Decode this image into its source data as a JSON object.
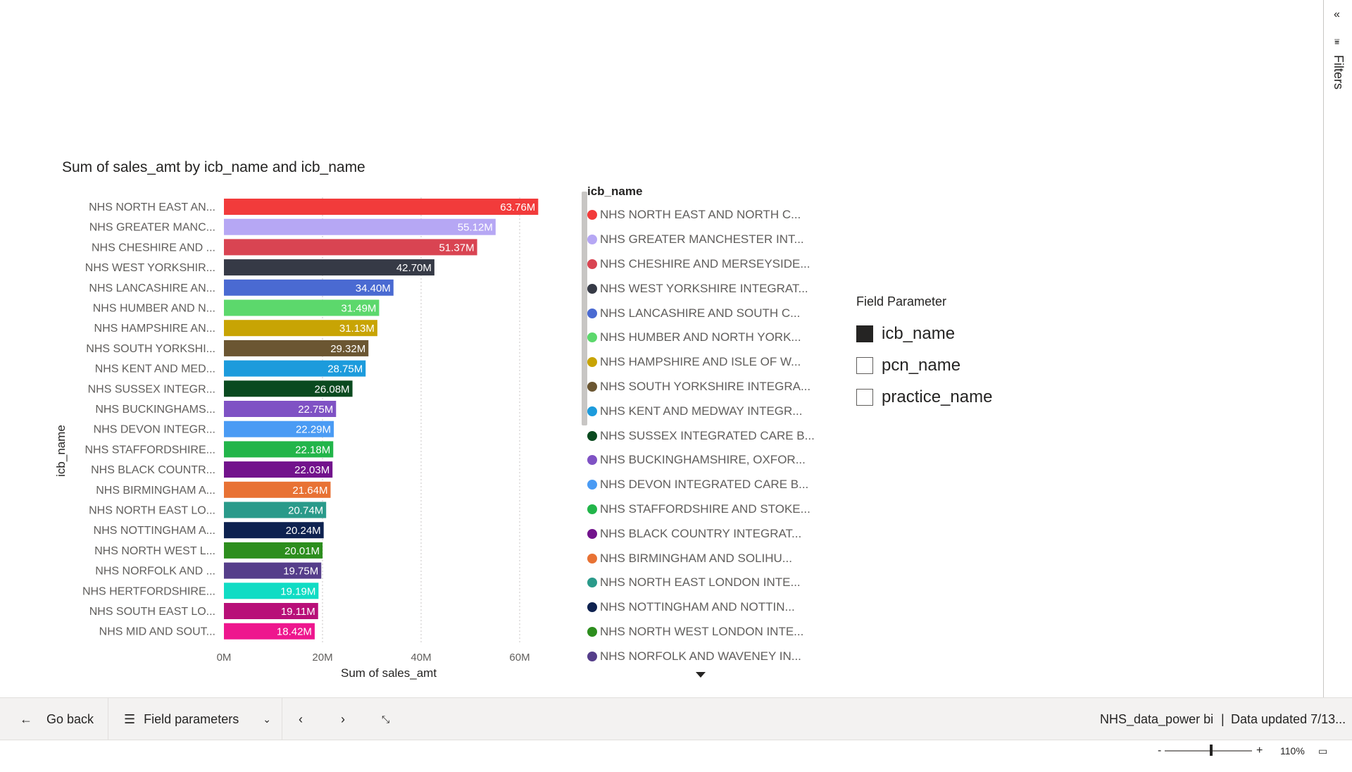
{
  "filters_pane": {
    "collapse_icon": "double-chevron-left-icon",
    "label": "Filters"
  },
  "chart": {
    "title": "Sum of sales_amt by icb_name and icb_name"
  },
  "chart_data": {
    "type": "bar",
    "orientation": "horizontal",
    "title": "Sum of sales_amt by icb_name and icb_name",
    "xlabel": "Sum of sales_amt",
    "ylabel": "icb_name",
    "xlim": [
      0,
      64
    ],
    "xticks": [
      {
        "value": 0,
        "label": "0M"
      },
      {
        "value": 20,
        "label": "20M"
      },
      {
        "value": 40,
        "label": "40M"
      },
      {
        "value": 60,
        "label": "60M"
      }
    ],
    "grid": "vertical-dotted",
    "categories": [
      "NHS NORTH EAST AN...",
      "NHS GREATER MANC...",
      "NHS CHESHIRE AND ...",
      "NHS WEST YORKSHIR...",
      "NHS LANCASHIRE AN...",
      "NHS HUMBER AND N...",
      "NHS HAMPSHIRE AN...",
      "NHS SOUTH YORKSHI...",
      "NHS KENT AND MED...",
      "NHS SUSSEX INTEGR...",
      "NHS BUCKINGHAMS...",
      "NHS DEVON INTEGR...",
      "NHS STAFFORDSHIRE...",
      "NHS BLACK COUNTR...",
      "NHS BIRMINGHAM A...",
      "NHS NORTH EAST LO...",
      "NHS NOTTINGHAM A...",
      "NHS NORTH WEST L...",
      "NHS NORFOLK AND ...",
      "NHS HERTFORDSHIRE...",
      "NHS SOUTH EAST LO...",
      "NHS MID AND SOUT..."
    ],
    "values": [
      63.76,
      55.12,
      51.37,
      42.7,
      34.4,
      31.49,
      31.13,
      29.32,
      28.75,
      26.08,
      22.75,
      22.29,
      22.18,
      22.03,
      21.64,
      20.74,
      20.24,
      20.01,
      19.75,
      19.19,
      19.11,
      18.42
    ],
    "data_labels": [
      "63.76M",
      "55.12M",
      "51.37M",
      "42.70M",
      "34.40M",
      "31.49M",
      "31.13M",
      "29.32M",
      "28.75M",
      "26.08M",
      "22.75M",
      "22.29M",
      "22.18M",
      "22.03M",
      "21.64M",
      "20.74M",
      "20.24M",
      "20.01M",
      "19.75M",
      "19.19M",
      "19.11M",
      "18.42M"
    ],
    "colors": [
      "#F23B3B",
      "#B6A7F4",
      "#D94452",
      "#363A46",
      "#4A6AD2",
      "#5CD86C",
      "#C8A404",
      "#6B5632",
      "#1C9BDC",
      "#0A4A1F",
      "#7F52C4",
      "#4A9BF4",
      "#22B54A",
      "#72138C",
      "#E87234",
      "#2A9A8A",
      "#0E2250",
      "#2D8E1E",
      "#553E8A",
      "#10DCC4",
      "#B80F78",
      "#EE168E"
    ],
    "label_colors": [
      "#ffffff",
      "#ffffff",
      "#ffffff",
      "#ffffff",
      "#ffffff",
      "#ffffff",
      "#ffffff",
      "#ffffff",
      "#ffffff",
      "#ffffff",
      "#ffffff",
      "#ffffff",
      "#ffffff",
      "#ffffff",
      "#ffffff",
      "#ffffff",
      "#ffffff",
      "#ffffff",
      "#ffffff",
      "#ffffff",
      "#ffffff",
      "#ffffff"
    ]
  },
  "legend": {
    "title": "icb_name",
    "items": [
      {
        "label": "NHS NORTH EAST AND NORTH C...",
        "color": "#F23B3B"
      },
      {
        "label": "NHS GREATER MANCHESTER INT...",
        "color": "#B6A7F4"
      },
      {
        "label": "NHS CHESHIRE AND MERSEYSIDE...",
        "color": "#D94452"
      },
      {
        "label": "NHS WEST YORKSHIRE INTEGRAT...",
        "color": "#363A46"
      },
      {
        "label": "NHS LANCASHIRE AND SOUTH C...",
        "color": "#4A6AD2"
      },
      {
        "label": "NHS HUMBER AND NORTH YORK...",
        "color": "#5CD86C"
      },
      {
        "label": "NHS HAMPSHIRE AND ISLE OF W...",
        "color": "#C8A404"
      },
      {
        "label": "NHS SOUTH YORKSHIRE INTEGRA...",
        "color": "#6B5632"
      },
      {
        "label": "NHS KENT AND MEDWAY INTEGR...",
        "color": "#1C9BDC"
      },
      {
        "label": "NHS SUSSEX INTEGRATED CARE B...",
        "color": "#0A4A1F"
      },
      {
        "label": "NHS BUCKINGHAMSHIRE, OXFOR...",
        "color": "#7F52C4"
      },
      {
        "label": "NHS DEVON INTEGRATED CARE B...",
        "color": "#4A9BF4"
      },
      {
        "label": "NHS STAFFORDSHIRE AND STOKE...",
        "color": "#22B54A"
      },
      {
        "label": "NHS BLACK COUNTRY INTEGRAT...",
        "color": "#72138C"
      },
      {
        "label": "NHS BIRMINGHAM AND SOLIHU...",
        "color": "#E87234"
      },
      {
        "label": "NHS NORTH EAST LONDON INTE...",
        "color": "#2A9A8A"
      },
      {
        "label": "NHS NOTTINGHAM AND NOTTIN...",
        "color": "#0E2250"
      },
      {
        "label": "NHS NORTH WEST LONDON INTE...",
        "color": "#2D8E1E"
      },
      {
        "label": "NHS NORFOLK AND WAVENEY IN...",
        "color": "#553E8A"
      }
    ],
    "more_icon": "caret-down-icon"
  },
  "slicer": {
    "title": "Field Parameter",
    "items": [
      {
        "label": "icb_name",
        "checked": true
      },
      {
        "label": "pcn_name",
        "checked": false
      },
      {
        "label": "practice_name",
        "checked": false
      }
    ]
  },
  "bottom_bar": {
    "go_back": "Go back",
    "go_back_icon": "arrow-left-icon",
    "pages_label": "Field parameters",
    "pages_icon": "list-icon",
    "pages_dropdown_icon": "chevron-down-icon",
    "prev_icon": "chevron-left-icon",
    "next_icon": "chevron-right-icon",
    "collapse_icon": "collapse-arrows-icon",
    "report_name": "NHS_data_power bi",
    "separator": "|",
    "data_updated": "Data updated 7/13..."
  },
  "status_bar": {
    "zoom_out": "-",
    "zoom_in": "+",
    "zoom_level": "110%",
    "fit_icon": "fit-to-page-icon"
  }
}
